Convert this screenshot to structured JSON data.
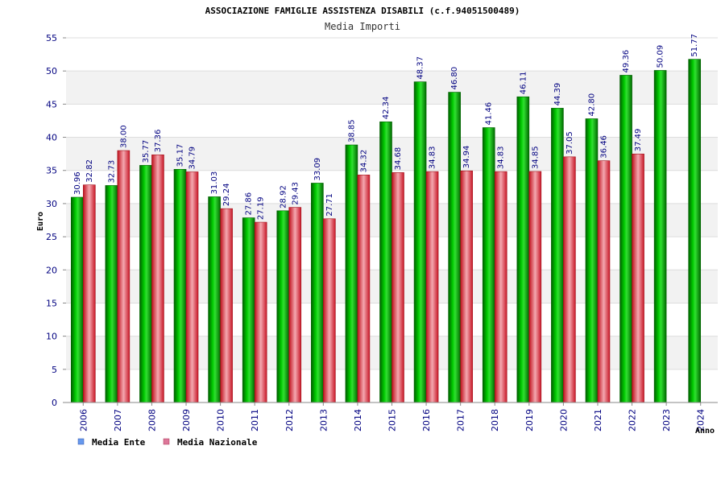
{
  "chart_data": {
    "type": "bar",
    "title": "ASSOCIAZIONE FAMIGLIE ASSISTENZA DISABILI (c.f.94051500489)",
    "subtitle": "Media Importi",
    "xlabel": "Anno",
    "ylabel": "Euro",
    "ylim": [
      0,
      55
    ],
    "ytick_step": 5,
    "grid": true,
    "legend_position": "bottom-left",
    "categories": [
      "2006",
      "2007",
      "2008",
      "2009",
      "2010",
      "2011",
      "2012",
      "2013",
      "2014",
      "2015",
      "2016",
      "2017",
      "2018",
      "2019",
      "2020",
      "2021",
      "2022",
      "2023",
      "2024"
    ],
    "series": [
      {
        "name": "Media Ente",
        "color": "#00aa00",
        "legend_color": "#6699ee",
        "values": [
          30.96,
          32.73,
          35.77,
          35.17,
          31.03,
          27.86,
          28.92,
          33.09,
          38.85,
          42.34,
          48.37,
          46.8,
          41.46,
          46.11,
          44.39,
          42.8,
          49.36,
          50.09,
          51.77
        ],
        "labels": [
          "30.96",
          "32.73",
          "35.77",
          "35.17",
          "31.03",
          "27.86",
          "28.92",
          "33.09",
          "38.85",
          "42.34",
          "48.37",
          "46.80",
          "41.46",
          "46.11",
          "44.39",
          "42.80",
          "49.36",
          "50.09",
          "51.77"
        ]
      },
      {
        "name": "Media Nazionale",
        "color": "#dd2233",
        "legend_color": "#dd7799",
        "values": [
          32.82,
          38.0,
          37.36,
          34.79,
          29.24,
          27.19,
          29.43,
          27.71,
          34.32,
          34.68,
          34.83,
          34.94,
          34.83,
          34.85,
          37.05,
          36.46,
          37.49,
          null,
          null
        ],
        "labels": [
          "32.82",
          "38.00",
          "37.36",
          "34.79",
          "29.24",
          "27.19",
          "29.43",
          "27.71",
          "34.32",
          "34.68",
          "34.83",
          "34.94",
          "34.83",
          "34.85",
          "37.05",
          "36.46",
          "37.49",
          null,
          null
        ]
      }
    ]
  }
}
